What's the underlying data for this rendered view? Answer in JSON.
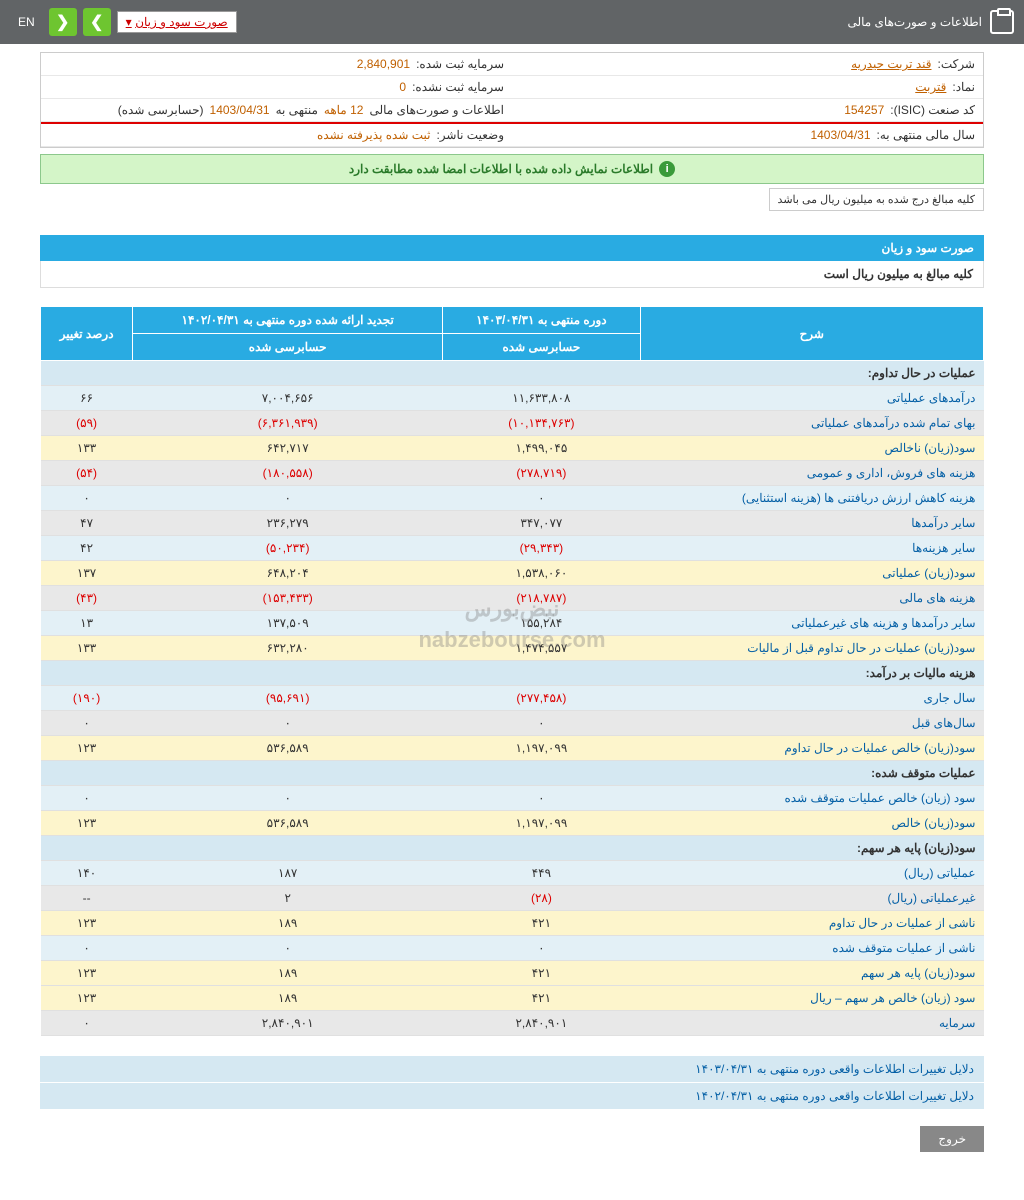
{
  "topbar": {
    "title": "اطلاعات و صورت‌های مالی",
    "dropdown": "صورت سود و زیان",
    "en": "EN"
  },
  "info": {
    "company_label": "شرکت:",
    "company_value": "قند تربت حیدریه",
    "symbol_label": "نماد:",
    "symbol_value": "قتربت",
    "isic_label": "کد صنعت (ISIC):",
    "isic_value": "154257",
    "fyend_label": "سال مالی منتهی به:",
    "fyend_value": "1403/04/31",
    "capital_reg_label": "سرمایه ثبت شده:",
    "capital_reg_value": "2,840,901",
    "capital_unreg_label": "سرمایه ثبت نشده:",
    "capital_unreg_value": "0",
    "period_label": "اطلاعات و صورت‌های مالی",
    "period_mid": "12 ماهه",
    "period_suffix": "منتهی به",
    "period_date": "1403/04/31",
    "period_audited": "(حسابرسی شده)",
    "issuer_status_label": "وضعیت ناشر:",
    "issuer_status_value": "ثبت شده پذیرفته نشده"
  },
  "green_banner": "اطلاعات نمایش داده شده با اطلاعات امضا شده مطابقت دارد",
  "note": "کلیه مبالغ درج شده به میلیون ریال می باشد",
  "section_title": "صورت سود و زیان",
  "section_sub": "کلیه مبالغ به میلیون ریال است",
  "headers": {
    "desc": "شرح",
    "period1": "دوره منتهی به ۱۴۰۳/۰۴/۳۱",
    "period2": "تجدید ارائه شده دوره منتهی به ۱۴۰۲/۰۴/۳۱",
    "change": "درصد تغییر",
    "audited": "حسابرسی شده"
  },
  "sections": {
    "s1": "عملیات در حال تداوم:",
    "s2": "هزینه مالیات بر درآمد:",
    "s3": "عملیات متوقف شده:",
    "s4": "سود(زیان) پایه هر سهم:"
  },
  "rows": [
    {
      "label": "درآمدهای عملیاتی",
      "v1": "۱۱,۶۳۳,۸۰۸",
      "v2": "۷,۰۰۴,۶۵۶",
      "chg": "۶۶",
      "cls": "row-blue"
    },
    {
      "label": "بهای تمام شده درآمدهای عملیاتی",
      "v1": "(۱۰,۱۳۴,۷۶۳)",
      "v2": "(۶,۳۶۱,۹۳۹)",
      "chg": "(۵۹)",
      "cls": "row-gray",
      "neg": true
    },
    {
      "label": "سود(زیان) ناخالص",
      "v1": "۱,۴۹۹,۰۴۵",
      "v2": "۶۴۲,۷۱۷",
      "chg": "۱۳۳",
      "cls": "row-yellow"
    },
    {
      "label": "هزینه های فروش، اداری و عمومی",
      "v1": "(۲۷۸,۷۱۹)",
      "v2": "(۱۸۰,۵۵۸)",
      "chg": "(۵۴)",
      "cls": "row-gray",
      "neg": true
    },
    {
      "label": "هزینه کاهش ارزش دریافتنی ها (هزینه استثنایی)",
      "v1": "۰",
      "v2": "۰",
      "chg": "۰",
      "cls": "row-blue"
    },
    {
      "label": "سایر درآمدها",
      "v1": "۳۴۷,۰۷۷",
      "v2": "۲۳۶,۲۷۹",
      "chg": "۴۷",
      "cls": "row-gray"
    },
    {
      "label": "سایر هزینه‌ها",
      "v1": "(۲۹,۳۴۳)",
      "v2": "(۵۰,۲۳۴)",
      "chg": "۴۲",
      "cls": "row-blue",
      "neg1": true,
      "neg2": true
    },
    {
      "label": "سود(زیان) عملیاتی",
      "v1": "۱,۵۳۸,۰۶۰",
      "v2": "۶۴۸,۲۰۴",
      "chg": "۱۳۷",
      "cls": "row-yellow"
    },
    {
      "label": "هزینه های مالی",
      "v1": "(۲۱۸,۷۸۷)",
      "v2": "(۱۵۳,۴۳۳)",
      "chg": "(۴۳)",
      "cls": "row-gray",
      "neg": true
    },
    {
      "label": "سایر درآمدها و هزینه های غیرعملیاتی",
      "v1": "۱۵۵,۲۸۴",
      "v2": "۱۳۷,۵۰۹",
      "chg": "۱۳",
      "cls": "row-blue"
    },
    {
      "label": "سود(زیان) عملیات در حال تداوم قبل از مالیات",
      "v1": "۱,۴۷۴,۵۵۷",
      "v2": "۶۳۲,۲۸۰",
      "chg": "۱۳۳",
      "cls": "row-yellow"
    }
  ],
  "rows2": [
    {
      "label": "سال جاری",
      "v1": "(۲۷۷,۴۵۸)",
      "v2": "(۹۵,۶۹۱)",
      "chg": "(۱۹۰)",
      "cls": "row-blue",
      "neg": true
    },
    {
      "label": "سال‌های قبل",
      "v1": "۰",
      "v2": "۰",
      "chg": "۰",
      "cls": "row-gray"
    },
    {
      "label": "سود(زیان) خالص عملیات در حال تداوم",
      "v1": "۱,۱۹۷,۰۹۹",
      "v2": "۵۳۶,۵۸۹",
      "chg": "۱۲۳",
      "cls": "row-yellow"
    }
  ],
  "rows3": [
    {
      "label": "سود (زیان) خالص عملیات متوقف شده",
      "v1": "۰",
      "v2": "۰",
      "chg": "۰",
      "cls": "row-blue"
    },
    {
      "label": "سود(زیان) خالص",
      "v1": "۱,۱۹۷,۰۹۹",
      "v2": "۵۳۶,۵۸۹",
      "chg": "۱۲۳",
      "cls": "row-yellow"
    }
  ],
  "rows4": [
    {
      "label": "عملیاتی (ریال)",
      "v1": "۴۴۹",
      "v2": "۱۸۷",
      "chg": "۱۴۰",
      "cls": "row-blue"
    },
    {
      "label": "غیرعملیاتی (ریال)",
      "v1": "(۲۸)",
      "v2": "۲",
      "chg": "--",
      "cls": "row-gray",
      "neg1": true
    },
    {
      "label": "ناشی از عملیات در حال تداوم",
      "v1": "۴۲۱",
      "v2": "۱۸۹",
      "chg": "۱۲۳",
      "cls": "row-yellow"
    },
    {
      "label": "ناشی از عملیات متوقف شده",
      "v1": "۰",
      "v2": "۰",
      "chg": "۰",
      "cls": "row-blue"
    },
    {
      "label": "سود(زیان) پایه هر سهم",
      "v1": "۴۲۱",
      "v2": "۱۸۹",
      "chg": "۱۲۳",
      "cls": "row-yellow"
    },
    {
      "label": "سود (زیان) خالص هر سهم – ریال",
      "v1": "۴۲۱",
      "v2": "۱۸۹",
      "chg": "۱۲۳",
      "cls": "row-yellow"
    },
    {
      "label": "سرمایه",
      "v1": "۲,۸۴۰,۹۰۱",
      "v2": "۲,۸۴۰,۹۰۱",
      "chg": "۰",
      "cls": "row-gray"
    }
  ],
  "reasons": {
    "r1": "دلایل تغییرات اطلاعات واقعی دوره منتهی به ۱۴۰۳/۰۴/۳۱",
    "r2": "دلایل تغییرات اطلاعات واقعی دوره منتهی به ۱۴۰۲/۰۴/۳۱"
  },
  "exit": "خروج",
  "watermark": {
    "l1": "نبض‌بورس",
    "l2": "nabzebourse.com"
  }
}
